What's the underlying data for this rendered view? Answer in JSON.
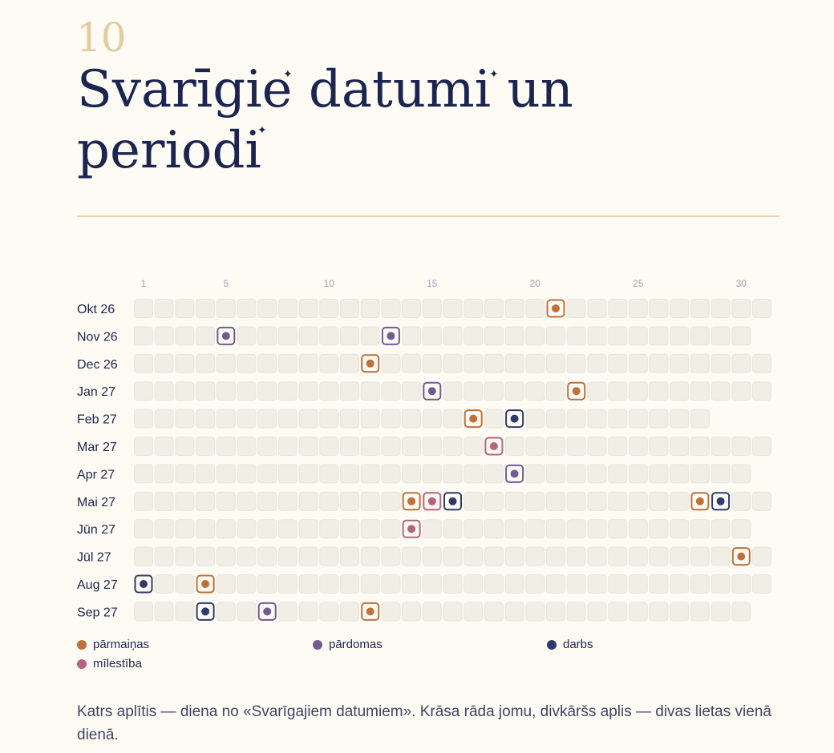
{
  "header": {
    "chapter_number": "10",
    "title_line1": "Svarīgie datumi un",
    "title_line2": "periodi"
  },
  "chart_data": {
    "type": "heatmap",
    "x_ticks": [
      1,
      5,
      10,
      15,
      20,
      25,
      30
    ],
    "x_range": [
      1,
      31
    ],
    "rows": [
      {
        "label": "Okt 26",
        "days": 31,
        "events": [
          {
            "day": 21,
            "theme": "parmainas"
          }
        ]
      },
      {
        "label": "Nov 26",
        "days": 30,
        "events": [
          {
            "day": 5,
            "theme": "pardomas"
          },
          {
            "day": 13,
            "theme": "pardomas"
          }
        ]
      },
      {
        "label": "Dec 26",
        "days": 31,
        "events": [
          {
            "day": 12,
            "theme": "parmainas"
          }
        ]
      },
      {
        "label": "Jan 27",
        "days": 31,
        "events": [
          {
            "day": 15,
            "theme": "pardomas"
          },
          {
            "day": 22,
            "theme": "parmainas"
          }
        ]
      },
      {
        "label": "Feb 27",
        "days": 28,
        "events": [
          {
            "day": 17,
            "theme": "parmainas"
          },
          {
            "day": 19,
            "theme": "darbs"
          }
        ]
      },
      {
        "label": "Mar 27",
        "days": 31,
        "events": [
          {
            "day": 18,
            "theme": "milestiba"
          }
        ]
      },
      {
        "label": "Apr 27",
        "days": 30,
        "events": [
          {
            "day": 19,
            "theme": "pardomas"
          }
        ]
      },
      {
        "label": "Mai 27",
        "days": 31,
        "events": [
          {
            "day": 14,
            "theme": "parmainas"
          },
          {
            "day": 15,
            "theme": "milestiba"
          },
          {
            "day": 16,
            "theme": "darbs"
          },
          {
            "day": 28,
            "theme": "parmainas"
          },
          {
            "day": 29,
            "theme": "darbs"
          }
        ]
      },
      {
        "label": "Jūn 27",
        "days": 30,
        "events": [
          {
            "day": 14,
            "theme": "milestiba"
          }
        ]
      },
      {
        "label": "Jūl 27",
        "days": 31,
        "events": [
          {
            "day": 30,
            "theme": "parmainas"
          }
        ]
      },
      {
        "label": "Aug 27",
        "days": 31,
        "events": [
          {
            "day": 1,
            "theme": "darbs"
          },
          {
            "day": 4,
            "theme": "parmainas"
          }
        ]
      },
      {
        "label": "Sep 27",
        "days": 30,
        "events": [
          {
            "day": 4,
            "theme": "darbs"
          },
          {
            "day": 7,
            "theme": "pardomas"
          },
          {
            "day": 12,
            "theme": "parmainas"
          }
        ]
      }
    ],
    "legend": [
      {
        "key": "parmainas",
        "label": "pārmaiņas",
        "color": "#c0703a"
      },
      {
        "key": "pardomas",
        "label": "pārdomas",
        "color": "#735a92"
      },
      {
        "key": "darbs",
        "label": "darbs",
        "color": "#2e3c6c"
      },
      {
        "key": "milestiba",
        "label": "mīlestība",
        "color": "#b8627f"
      }
    ],
    "cell_color": "#f1eee6",
    "cell_border": "#e9e5dc"
  },
  "footer": {
    "note": "Katrs aplītis — diena no «Svarīgajiem datumiem». Krāsa rāda jomu, divkāršs aplis — divas lietas vienā dienā."
  }
}
